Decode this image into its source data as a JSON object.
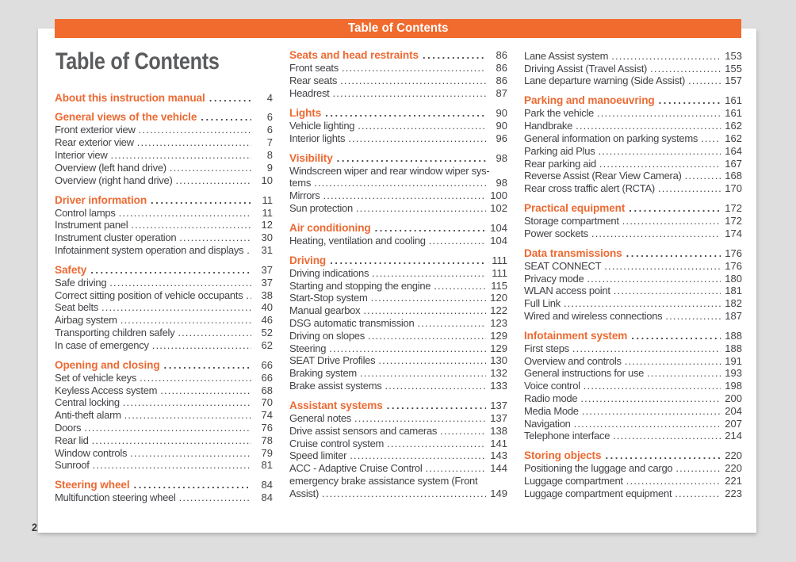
{
  "header_bar": {
    "label": "Table of Contents"
  },
  "title": "Table of Contents",
  "footer": {
    "page_number": "2"
  },
  "colors": {
    "accent": "#f06b2d",
    "background": "#dedede",
    "sheet": "#ffffff",
    "text": "#414246"
  },
  "columns": [
    {
      "sections": [
        {
          "title": "About this instruction manual",
          "page": "4",
          "items": []
        },
        {
          "title": "General views of the vehicle",
          "page": "6",
          "items": [
            {
              "label": "Front exterior view",
              "page": "6"
            },
            {
              "label": "Rear exterior view",
              "page": "7"
            },
            {
              "label": "Interior view",
              "page": "8"
            },
            {
              "label": "Overview (left hand drive)",
              "page": "9"
            },
            {
              "label": "Overview (right hand drive)",
              "page": "10"
            }
          ]
        },
        {
          "title": "Driver information",
          "page": "11",
          "items": [
            {
              "label": "Control lamps",
              "page": "11"
            },
            {
              "label": "Instrument panel",
              "page": "12"
            },
            {
              "label": "Instrument cluster operation",
              "page": "30"
            },
            {
              "label": "Infotainment system operation and displays",
              "page": "31"
            }
          ]
        },
        {
          "title": "Safety",
          "page": "37",
          "items": [
            {
              "label": "Safe driving",
              "page": "37"
            },
            {
              "label": "Correct sitting position of vehicle occupants",
              "page": "38"
            },
            {
              "label": "Seat belts",
              "page": "40"
            },
            {
              "label": "Airbag system",
              "page": "46"
            },
            {
              "label": "Transporting children safely",
              "page": "52"
            },
            {
              "label": "In case of emergency",
              "page": "62"
            }
          ]
        },
        {
          "title": "Opening and closing",
          "page": "66",
          "items": [
            {
              "label": "Set of vehicle keys",
              "page": "66"
            },
            {
              "label": "Keyless Access system",
              "page": "68"
            },
            {
              "label": "Central locking",
              "page": "70"
            },
            {
              "label": "Anti-theft alarm",
              "page": "74"
            },
            {
              "label": "Doors",
              "page": "76"
            },
            {
              "label": "Rear lid",
              "page": "78"
            },
            {
              "label": "Window controls",
              "page": "79"
            },
            {
              "label": "Sunroof",
              "page": "81"
            }
          ]
        },
        {
          "title": "Steering wheel",
          "page": "84",
          "items": [
            {
              "label": "Multifunction steering wheel",
              "page": "84"
            }
          ]
        }
      ]
    },
    {
      "sections": [
        {
          "title": "Seats and head restraints",
          "page": "86",
          "items": [
            {
              "label": "Front seats",
              "page": "86"
            },
            {
              "label": "Rear seats",
              "page": "86"
            },
            {
              "label": "Headrest",
              "page": "87"
            }
          ]
        },
        {
          "title": "Lights",
          "page": "90",
          "items": [
            {
              "label": "Vehicle lighting",
              "page": "90"
            },
            {
              "label": "Interior lights",
              "page": "96"
            }
          ]
        },
        {
          "title": "Visibility",
          "page": "98",
          "items": [
            {
              "label": "Windscreen wiper and rear window wiper sys-\ntems",
              "page": "98"
            },
            {
              "label": "Mirrors",
              "page": "100"
            },
            {
              "label": "Sun protection",
              "page": "102"
            }
          ]
        },
        {
          "title": "Air conditioning",
          "page": "104",
          "items": [
            {
              "label": "Heating, ventilation and cooling",
              "page": "104"
            }
          ]
        },
        {
          "title": "Driving",
          "page": "111",
          "items": [
            {
              "label": "Driving indications",
              "page": "111"
            },
            {
              "label": "Starting and stopping the engine",
              "page": "115"
            },
            {
              "label": "Start-Stop system",
              "page": "120"
            },
            {
              "label": "Manual gearbox",
              "page": "122"
            },
            {
              "label": "DSG automatic transmission",
              "page": "123"
            },
            {
              "label": "Driving on slopes",
              "page": "129"
            },
            {
              "label": "Steering",
              "page": "129"
            },
            {
              "label": "SEAT Drive Profiles",
              "page": "130"
            },
            {
              "label": "Braking system",
              "page": "132"
            },
            {
              "label": "Brake assist systems",
              "page": "133"
            }
          ]
        },
        {
          "title": "Assistant systems",
          "page": "137",
          "items": [
            {
              "label": "General notes",
              "page": "137"
            },
            {
              "label": "Drive assist sensors and cameras",
              "page": "138"
            },
            {
              "label": "Cruise control system",
              "page": "141"
            },
            {
              "label": "Speed limiter",
              "page": "143"
            },
            {
              "label": "ACC - Adaptive Cruise Control",
              "page": "144"
            },
            {
              "label": "emergency brake assistance system (Front\nAssist)",
              "page": "149"
            }
          ]
        }
      ]
    },
    {
      "sections": [
        {
          "title": "",
          "page": "",
          "items": [
            {
              "label": "Lane Assist system",
              "page": "153"
            },
            {
              "label": "Driving Assist (Travel Assist)",
              "page": "155"
            },
            {
              "label": "Lane departure warning (Side Assist)",
              "page": "157"
            }
          ]
        },
        {
          "title": "Parking and manoeuvring",
          "page": "161",
          "items": [
            {
              "label": "Park the vehicle",
              "page": "161"
            },
            {
              "label": "Handbrake",
              "page": "162"
            },
            {
              "label": "General information on parking systems",
              "page": "162"
            },
            {
              "label": "Parking aid Plus",
              "page": "164"
            },
            {
              "label": "Rear parking aid",
              "page": "167"
            },
            {
              "label": "Reverse Assist (Rear View Camera)",
              "page": "168"
            },
            {
              "label": "Rear cross traffic alert (RCTA)",
              "page": "170"
            }
          ]
        },
        {
          "title": "Practical equipment",
          "page": "172",
          "items": [
            {
              "label": "Storage compartment",
              "page": "172"
            },
            {
              "label": "Power sockets",
              "page": "174"
            }
          ]
        },
        {
          "title": "Data transmissions",
          "page": "176",
          "items": [
            {
              "label": "SEAT CONNECT",
              "page": "176"
            },
            {
              "label": "Privacy mode",
              "page": "180"
            },
            {
              "label": "WLAN access point",
              "page": "181"
            },
            {
              "label": "Full Link",
              "page": "182"
            },
            {
              "label": "Wired and wireless connections",
              "page": "187"
            }
          ]
        },
        {
          "title": "Infotainment system",
          "page": "188",
          "items": [
            {
              "label": "First steps",
              "page": "188"
            },
            {
              "label": "Overview and controls",
              "page": "191"
            },
            {
              "label": "General instructions for use",
              "page": "193"
            },
            {
              "label": "Voice control",
              "page": "198"
            },
            {
              "label": "Radio mode",
              "page": "200"
            },
            {
              "label": "Media Mode",
              "page": "204"
            },
            {
              "label": "Navigation",
              "page": "207"
            },
            {
              "label": "Telephone interface",
              "page": "214"
            }
          ]
        },
        {
          "title": "Storing objects",
          "page": "220",
          "items": [
            {
              "label": "Positioning the luggage and cargo",
              "page": "220"
            },
            {
              "label": "Luggage compartment",
              "page": "221"
            },
            {
              "label": "Luggage compartment equipment",
              "page": "223"
            }
          ]
        }
      ]
    }
  ]
}
